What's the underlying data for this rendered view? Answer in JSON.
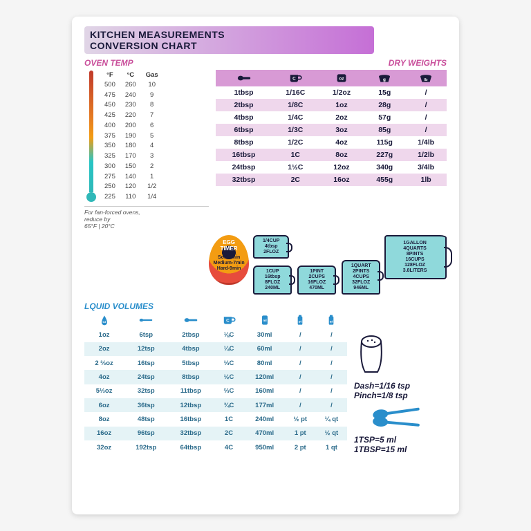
{
  "title": {
    "line1": "KITCHEN MEASUREMENTS",
    "line2": "CONVERSION CHART"
  },
  "colors": {
    "title_grad_start": "#e0d5e6",
    "title_grad_end": "#c56fd6",
    "pink_header": "#d89ad5",
    "pink_row": "#efd7ec",
    "oven_title": "#c94f9b",
    "liquid_title": "#2a8ecb",
    "liquid_row": "#e5f3f6",
    "cup_fill": "#8fd9db",
    "navy": "#1a1a3a"
  },
  "oven": {
    "title": "OVEN TEMP",
    "columns": [
      "°F",
      "°C",
      "Gas"
    ],
    "rows": [
      [
        "500",
        "260",
        "10"
      ],
      [
        "475",
        "240",
        "9"
      ],
      [
        "450",
        "230",
        "8"
      ],
      [
        "425",
        "220",
        "7"
      ],
      [
        "400",
        "200",
        "6"
      ],
      [
        "375",
        "190",
        "5"
      ],
      [
        "350",
        "180",
        "4"
      ],
      [
        "325",
        "170",
        "3"
      ],
      [
        "300",
        "150",
        "2"
      ],
      [
        "275",
        "140",
        "1"
      ],
      [
        "250",
        "120",
        "1/2"
      ],
      [
        "225",
        "110",
        "1/4"
      ]
    ],
    "note_l1": "For fan-forced ovens,",
    "note_l2": "reduce by",
    "note_l3": "65°F | 20°C"
  },
  "dry": {
    "title": "DRY WEIGHTS",
    "headers": [
      "spoon",
      "C",
      "oz",
      "g",
      "lb"
    ],
    "rows": [
      [
        "1tbsp",
        "1/16C",
        "1/2oz",
        "15g",
        "/"
      ],
      [
        "2tbsp",
        "1/8C",
        "1oz",
        "28g",
        "/"
      ],
      [
        "4tbsp",
        "1/4C",
        "2oz",
        "57g",
        "/"
      ],
      [
        "6tbsp",
        "1/3C",
        "3oz",
        "85g",
        "/"
      ],
      [
        "8tbsp",
        "1/2C",
        "4oz",
        "115g",
        "1/4lb"
      ],
      [
        "16tbsp",
        "1C",
        "8oz",
        "227g",
        "1/2lb"
      ],
      [
        "24tbsp",
        "1½C",
        "12oz",
        "340g",
        "3/4lb"
      ],
      [
        "32tbsp",
        "2C",
        "16oz",
        "455g",
        "1lb"
      ]
    ]
  },
  "egg": {
    "title1": "EGG",
    "title2": "TIMER",
    "soft": "Soft-5min",
    "med": "Medium-7min",
    "hard": "Hard-9min"
  },
  "cups": {
    "quarter": [
      "1/4CUP",
      "4tbsp",
      "2FLOZ"
    ],
    "one": [
      "1CUP",
      "16tbsp",
      "8FLOZ",
      "240ML"
    ],
    "pint": [
      "1PINT",
      "2CUPS",
      "16FLOZ",
      "470ML"
    ],
    "quart": [
      "1QUART",
      "2PINTS",
      "4CUPS",
      "32FLOZ",
      "946ML"
    ],
    "gallon": [
      "1GALLON",
      "4QUARTS",
      "8PINTS",
      "16CUPS",
      "128FLOZ",
      "3.8LITERS"
    ]
  },
  "liquid": {
    "title": "LQUID VOLUMES",
    "headers": [
      "oz",
      "tsp",
      "tbsp",
      "C",
      "ml",
      "pt",
      "qt"
    ],
    "rows": [
      [
        "1oz",
        "6tsp",
        "2tbsp",
        "⅛C",
        "30ml",
        "/",
        "/"
      ],
      [
        "2oz",
        "12tsp",
        "4tbsp",
        "¼C",
        "60ml",
        "/",
        "/"
      ],
      [
        "2 ⅔oz",
        "16tsp",
        "5tbsp",
        "⅓C",
        "80ml",
        "/",
        "/"
      ],
      [
        "4oz",
        "24tsp",
        "8tbsp",
        "½C",
        "120ml",
        "/",
        "/"
      ],
      [
        "5⅓oz",
        "32tsp",
        "11tbsp",
        "⅔C",
        "160ml",
        "/",
        "/"
      ],
      [
        "6oz",
        "36tsp",
        "12tbsp",
        "¾C",
        "177ml",
        "/",
        "/"
      ],
      [
        "8oz",
        "48tsp",
        "16tbsp",
        "1C",
        "240ml",
        "½ pt",
        "¼ qt"
      ],
      [
        "16oz",
        "96tsp",
        "32tbsp",
        "2C",
        "470ml",
        "1 pt",
        "½ qt"
      ],
      [
        "32oz",
        "192tsp",
        "64tbsp",
        "4C",
        "950ml",
        "2 pt",
        "1 qt"
      ]
    ]
  },
  "extras": {
    "dash": "Dash=1/16 tsp",
    "pinch": "Pinch=1/8 tsp",
    "tsp": "1TSP=5 ml",
    "tbsp": "1TBSP=15 ml"
  }
}
